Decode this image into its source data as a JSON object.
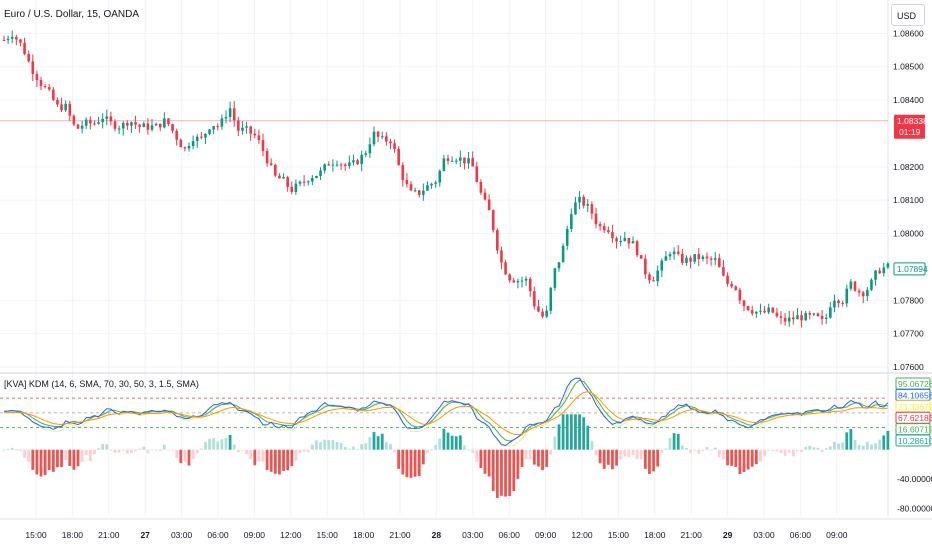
{
  "header": {
    "symbol_title": "Euro / U.S. Dollar, 15, OANDA",
    "currency_button": "USD"
  },
  "indicator": {
    "title": "[KVA] KDM (14, 6, SMA, 70, 30, 50, 3, 1.5, SMA)"
  },
  "colors": {
    "up": "#089981",
    "down": "#f23645",
    "grid": "#f0f3fa",
    "ref_level": "#f23645",
    "line_blue": "#2962ff",
    "line_yellow": "#e6ee9c",
    "line_orange": "#ff9800",
    "line_green": "#4caf50",
    "hist_up_strong": "#26a69a",
    "hist_up_weak": "#b2dfdb",
    "hist_down_strong": "#ef5350",
    "hist_down_weak": "#ffcdd2"
  },
  "chart_data": [
    {
      "type": "candlestick",
      "title": "Euro / U.S. Dollar, 15, OANDA",
      "ylim": [
        1.076,
        1.087
      ],
      "y_ticks": [
        "1.08600",
        "1.08500",
        "1.08400",
        "1.08200",
        "1.08100",
        "1.08000",
        "1.07800",
        "1.07700",
        "1.07600"
      ],
      "x_ticks": [
        "15:00",
        "18:00",
        "21:00",
        "27",
        "03:00",
        "06:00",
        "09:00",
        "12:00",
        "15:00",
        "18:00",
        "21:00",
        "28",
        "03:00",
        "06:00",
        "09:00",
        "12:00",
        "15:00",
        "18:00",
        "21:00",
        "29",
        "03:00",
        "06:00",
        "09:00"
      ],
      "price_labels": [
        {
          "value": "1.08338",
          "sub": "01:19",
          "price": 1.08338,
          "role": "current"
        },
        {
          "value": "1.07894",
          "price": 1.07894,
          "role": "last_close"
        }
      ],
      "close_path": [
        [
          0,
          1.0858
        ],
        [
          4,
          1.086
        ],
        [
          9,
          1.0856
        ],
        [
          13,
          1.085
        ],
        [
          18,
          1.0845
        ],
        [
          22,
          1.0842
        ],
        [
          26,
          1.0838
        ],
        [
          30,
          1.0838
        ],
        [
          35,
          1.0831
        ],
        [
          39,
          1.0833
        ],
        [
          44,
          1.0833
        ],
        [
          48,
          1.0835
        ],
        [
          52,
          1.0833
        ],
        [
          57,
          1.0832
        ],
        [
          61,
          1.0834
        ],
        [
          66,
          1.0832
        ],
        [
          70,
          1.0832
        ],
        [
          74,
          1.0832
        ],
        [
          79,
          1.0834
        ],
        [
          83,
          1.083
        ],
        [
          88,
          1.0825
        ],
        [
          92,
          1.0829
        ],
        [
          96,
          1.0828
        ],
        [
          101,
          1.0833
        ],
        [
          105,
          1.0832
        ],
        [
          110,
          1.0838
        ],
        [
          114,
          1.0831
        ],
        [
          118,
          1.0831
        ],
        [
          123,
          1.0829
        ],
        [
          127,
          1.0824
        ],
        [
          132,
          1.0817
        ],
        [
          136,
          1.0816
        ],
        [
          140,
          1.0813
        ],
        [
          145,
          1.0815
        ],
        [
          149,
          1.0817
        ],
        [
          154,
          1.0818
        ],
        [
          158,
          1.0821
        ],
        [
          162,
          1.0822
        ],
        [
          167,
          1.082
        ],
        [
          171,
          1.0821
        ],
        [
          176,
          1.0824
        ],
        [
          180,
          1.083
        ],
        [
          184,
          1.0828
        ],
        [
          189,
          1.0828
        ],
        [
          193,
          1.0819
        ],
        [
          198,
          1.0812
        ],
        [
          202,
          1.0812
        ],
        [
          206,
          1.0814
        ],
        [
          211,
          1.0816
        ],
        [
          215,
          1.0823
        ],
        [
          220,
          1.0823
        ],
        [
          224,
          1.0822
        ],
        [
          228,
          1.0821
        ],
        [
          233,
          1.0811
        ],
        [
          237,
          1.0806
        ],
        [
          242,
          1.0792
        ],
        [
          246,
          1.0787
        ],
        [
          250,
          1.0786
        ],
        [
          255,
          1.0786
        ],
        [
          259,
          1.0778
        ],
        [
          264,
          1.0774
        ],
        [
          268,
          1.0788
        ],
        [
          272,
          1.0794
        ],
        [
          277,
          1.0808
        ],
        [
          281,
          1.081
        ],
        [
          286,
          1.0807
        ],
        [
          290,
          1.0802
        ],
        [
          294,
          1.0802
        ],
        [
          299,
          1.0798
        ],
        [
          303,
          1.0799
        ],
        [
          308,
          1.0796
        ],
        [
          312,
          1.0789
        ],
        [
          316,
          1.0786
        ],
        [
          321,
          1.0791
        ],
        [
          325,
          1.0795
        ],
        [
          330,
          1.0792
        ],
        [
          334,
          1.0792
        ],
        [
          338,
          1.0793
        ],
        [
          343,
          1.0792
        ],
        [
          347,
          1.0792
        ],
        [
          352,
          1.0785
        ],
        [
          356,
          1.0785
        ],
        [
          360,
          1.0779
        ],
        [
          365,
          1.0777
        ],
        [
          369,
          1.0776
        ],
        [
          374,
          1.0777
        ],
        [
          378,
          1.0774
        ],
        [
          382,
          1.0774
        ],
        [
          387,
          1.0775
        ],
        [
          391,
          1.0775
        ],
        [
          396,
          1.0775
        ],
        [
          400,
          1.0773
        ],
        [
          404,
          1.0781
        ],
        [
          409,
          1.078
        ],
        [
          413,
          1.0785
        ],
        [
          418,
          1.0782
        ],
        [
          422,
          1.0784
        ],
        [
          426,
          1.0789
        ],
        [
          431,
          1.079
        ]
      ]
    },
    {
      "type": "line+histogram",
      "title": "[KVA] KDM (14, 6, SMA, 70, 30, 50, 3, 1.5, SMA)",
      "ylim": [
        -90,
        100
      ],
      "y_ticks": [
        "-40.00000",
        "-80.00000"
      ],
      "reference_levels": [
        70,
        50,
        30
      ],
      "value_labels": [
        {
          "value": "95.06726",
          "color": "#4caf50"
        },
        {
          "value": "84.10656",
          "color": "#2962ff"
        },
        {
          "value": "73.33677",
          "color": "#ffeb3b"
        },
        {
          "value": "67.62183",
          "color": "#f23645"
        },
        {
          "value": "16.60719",
          "color": "#4caf50"
        },
        {
          "value": "10.28610",
          "color": "#26a69a"
        }
      ]
    }
  ]
}
